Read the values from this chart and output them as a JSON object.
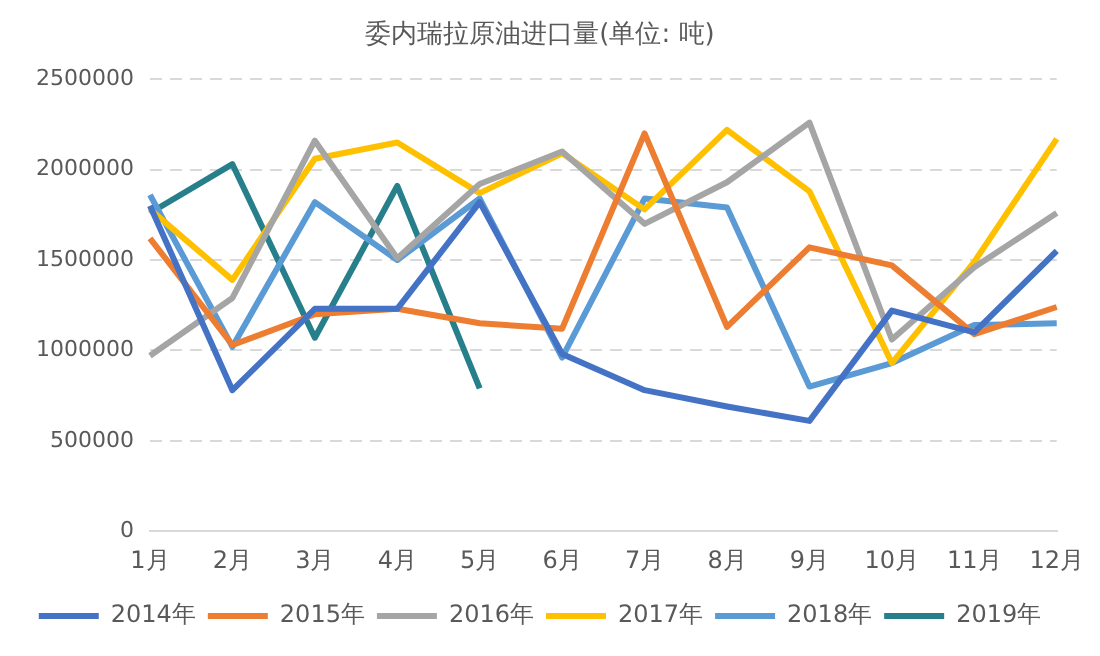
{
  "chart_data": {
    "type": "line",
    "title": "委内瑞拉原油进口量(单位: 吨)",
    "categories": [
      "1月",
      "2月",
      "3月",
      "4月",
      "5月",
      "6月",
      "7月",
      "8月",
      "9月",
      "10月",
      "11月",
      "12月"
    ],
    "series": [
      {
        "name": "2014年",
        "color": "#4472c4",
        "values": [
          1800000,
          780000,
          1230000,
          1230000,
          1820000,
          980000,
          780000,
          690000,
          610000,
          1220000,
          1100000,
          1550000
        ]
      },
      {
        "name": "2015年",
        "color": "#ed7d31",
        "values": [
          1620000,
          1030000,
          1200000,
          1230000,
          1150000,
          1120000,
          2200000,
          1130000,
          1570000,
          1470000,
          1090000,
          1240000
        ]
      },
      {
        "name": "2016年",
        "color": "#a5a5a5",
        "values": [
          970000,
          1290000,
          2160000,
          1510000,
          1920000,
          2100000,
          1700000,
          1930000,
          2260000,
          1060000,
          1460000,
          1760000
        ]
      },
      {
        "name": "2017年",
        "color": "#ffc000",
        "values": [
          1780000,
          1390000,
          2060000,
          2150000,
          1870000,
          2090000,
          1780000,
          2220000,
          1880000,
          930000,
          1490000,
          2170000
        ]
      },
      {
        "name": "2018年",
        "color": "#5b9bd5",
        "values": [
          1860000,
          1020000,
          1820000,
          1500000,
          1840000,
          960000,
          1840000,
          1790000,
          800000,
          930000,
          1140000,
          1150000
        ]
      },
      {
        "name": "2019年",
        "color": "#267f8a",
        "values": [
          1760000,
          2030000,
          1070000,
          1910000,
          790000,
          null,
          null,
          null,
          null,
          null,
          null,
          null
        ]
      }
    ],
    "ylim": [
      0,
      2500000
    ],
    "yticks": [
      0,
      500000,
      1000000,
      1500000,
      2000000,
      2500000
    ],
    "grid": "y",
    "legend": "bottom",
    "marker": "none",
    "line_style": "solid"
  }
}
